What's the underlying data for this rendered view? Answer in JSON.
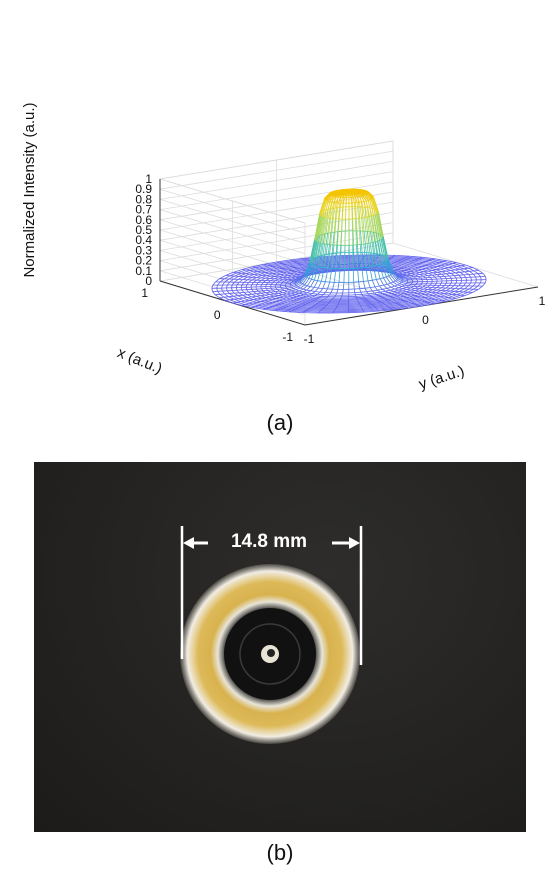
{
  "chart_data": {
    "type": "surface3d",
    "zlabel": "Normalized Intensity (a.u.)",
    "xlabel": "x (a.u.)",
    "ylabel": "y (a.u.)",
    "zticks": [
      "0",
      "0.1",
      "0.2",
      "0.3",
      "0.4",
      "0.5",
      "0.6",
      "0.7",
      "0.8",
      "0.9",
      "1"
    ],
    "xticks": [
      "1",
      "0",
      "-1"
    ],
    "yticks": [
      "-1",
      "0",
      "1"
    ],
    "xlim": [
      -1,
      1
    ],
    "ylim": [
      -1,
      1
    ],
    "zlim": [
      0,
      1
    ],
    "grid": true,
    "profile": "flat-top beam, ~0.9 plateau, radius ~0.3",
    "colormap": [
      "#6060ee",
      "#2ab6cf",
      "#66cc88",
      "#e0e040",
      "#f5c400"
    ]
  },
  "captions": {
    "a": "(a)",
    "b": "(b)"
  },
  "photo": {
    "measurement": "14.8 mm",
    "ring_color": "#d8b24e",
    "background": "#222120"
  }
}
